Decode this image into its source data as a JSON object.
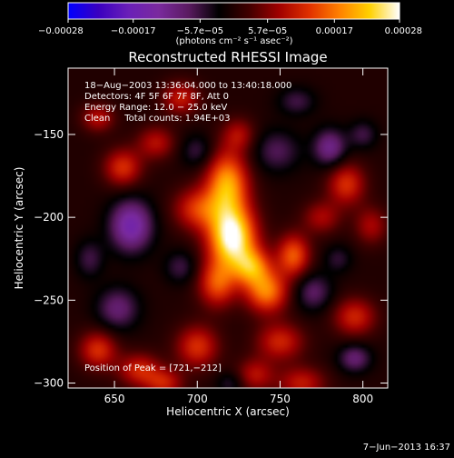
{
  "chart_data": {
    "type": "heatmap",
    "title": "Reconstructed RHESSI Image",
    "xlabel": "Heliocentric X (arcsec)",
    "ylabel": "Heliocentric Y (arcsec)",
    "xlim": [
      622,
      815
    ],
    "ylim": [
      -303,
      -110
    ],
    "x_ticks": [
      650,
      700,
      750,
      800
    ],
    "y_ticks": [
      -150,
      -200,
      -250,
      -300
    ],
    "x_tick_labels": [
      "650",
      "700",
      "750",
      "800"
    ],
    "y_tick_labels": [
      "−150",
      "−200",
      "−250",
      "−300"
    ],
    "colorbar": {
      "range": [
        -0.00028,
        0.00028
      ],
      "ticks": [
        -0.00028,
        -0.00017,
        -5.7e-05,
        5.7e-05,
        0.00017,
        0.00028
      ],
      "tick_labels": [
        "−0.00028",
        "−0.00017",
        "−5.7e−05",
        "5.7e−05",
        "0.00017",
        "0.00028"
      ],
      "unit_label": "(photons cm⁻² s⁻¹ asec⁻²)",
      "colors": [
        "#0000ff",
        "#3a00c0",
        "#6a1fb8",
        "#7a2a9e",
        "#5a1a60",
        "#000000",
        "#400000",
        "#a00000",
        "#e03000",
        "#ff8000",
        "#ffd000",
        "#ffffff"
      ]
    },
    "annotations": {
      "time": "18−Aug−2003 13:36:04.000 to 13:40:18.000",
      "detectors": "Detectors: 4F 5F 6F 7F 8F, Att 0",
      "energy": "Energy Range: 12.0 − 25.0 keV",
      "clean": "Clean     Total counts: 1.94E+03",
      "peak": "Position of Peak = [721,−212]"
    },
    "peak": {
      "x": 721,
      "y": -212
    },
    "blobs": [
      {
        "x": 721,
        "y": -212,
        "v": 0.00028,
        "sx": 10,
        "sy": 13
      },
      {
        "x": 718,
        "y": -180,
        "v": 0.0002,
        "sx": 9,
        "sy": 14
      },
      {
        "x": 700,
        "y": -195,
        "v": 0.00012,
        "sx": 10,
        "sy": 9
      },
      {
        "x": 733,
        "y": -230,
        "v": 0.00016,
        "sx": 8,
        "sy": 8
      },
      {
        "x": 742,
        "y": -245,
        "v": 0.00017,
        "sx": 9,
        "sy": 9
      },
      {
        "x": 712,
        "y": -240,
        "v": 0.00014,
        "sx": 8,
        "sy": 10
      },
      {
        "x": 758,
        "y": -223,
        "v": 0.00015,
        "sx": 7,
        "sy": 9
      },
      {
        "x": 750,
        "y": -275,
        "v": 0.00011,
        "sx": 10,
        "sy": 8
      },
      {
        "x": 763,
        "y": -300,
        "v": 0.0001,
        "sx": 10,
        "sy": 7
      },
      {
        "x": 700,
        "y": -278,
        "v": 0.00012,
        "sx": 9,
        "sy": 9
      },
      {
        "x": 735,
        "y": -295,
        "v": 9e-05,
        "sx": 8,
        "sy": 7
      },
      {
        "x": 655,
        "y": -170,
        "v": 0.00012,
        "sx": 8,
        "sy": 8
      },
      {
        "x": 640,
        "y": -140,
        "v": 9e-05,
        "sx": 7,
        "sy": 6
      },
      {
        "x": 675,
        "y": -155,
        "v": 9e-05,
        "sx": 8,
        "sy": 7
      },
      {
        "x": 690,
        "y": -128,
        "v": 0.0001,
        "sx": 8,
        "sy": 7
      },
      {
        "x": 640,
        "y": -280,
        "v": 0.00012,
        "sx": 8,
        "sy": 8
      },
      {
        "x": 665,
        "y": -292,
        "v": 0.00011,
        "sx": 9,
        "sy": 7
      },
      {
        "x": 680,
        "y": -300,
        "v": 0.0001,
        "sx": 8,
        "sy": 6
      },
      {
        "x": 795,
        "y": -260,
        "v": 0.00011,
        "sx": 9,
        "sy": 8
      },
      {
        "x": 790,
        "y": -180,
        "v": 0.00012,
        "sx": 8,
        "sy": 9
      },
      {
        "x": 805,
        "y": -205,
        "v": 8e-05,
        "sx": 7,
        "sy": 8
      },
      {
        "x": 775,
        "y": -200,
        "v": 8e-05,
        "sx": 8,
        "sy": 7
      },
      {
        "x": 725,
        "y": -150,
        "v": 8e-05,
        "sx": 7,
        "sy": 7
      },
      {
        "x": 748,
        "y": -160,
        "v": -7e-05,
        "sx": 10,
        "sy": 9
      },
      {
        "x": 660,
        "y": -205,
        "v": -0.00015,
        "sx": 9,
        "sy": 11
      },
      {
        "x": 652,
        "y": -255,
        "v": -9e-05,
        "sx": 9,
        "sy": 9
      },
      {
        "x": 780,
        "y": -158,
        "v": -0.00011,
        "sx": 7,
        "sy": 8
      },
      {
        "x": 800,
        "y": -150,
        "v": -6e-05,
        "sx": 6,
        "sy": 6
      },
      {
        "x": 795,
        "y": -285,
        "v": -9e-05,
        "sx": 7,
        "sy": 6
      },
      {
        "x": 770,
        "y": -245,
        "v": -8e-05,
        "sx": 8,
        "sy": 8
      },
      {
        "x": 690,
        "y": -230,
        "v": -6e-05,
        "sx": 7,
        "sy": 7
      },
      {
        "x": 700,
        "y": -160,
        "v": -6e-05,
        "sx": 7,
        "sy": 7
      },
      {
        "x": 785,
        "y": -225,
        "v": -5e-05,
        "sx": 6,
        "sy": 6
      },
      {
        "x": 635,
        "y": -225,
        "v": -6e-05,
        "sx": 6,
        "sy": 8
      },
      {
        "x": 760,
        "y": -130,
        "v": -6e-05,
        "sx": 8,
        "sy": 6
      },
      {
        "x": 720,
        "y": -300,
        "v": -5e-05,
        "sx": 6,
        "sy": 5
      }
    ]
  },
  "footer": {
    "date": "7−Jun−2013 16:37"
  }
}
